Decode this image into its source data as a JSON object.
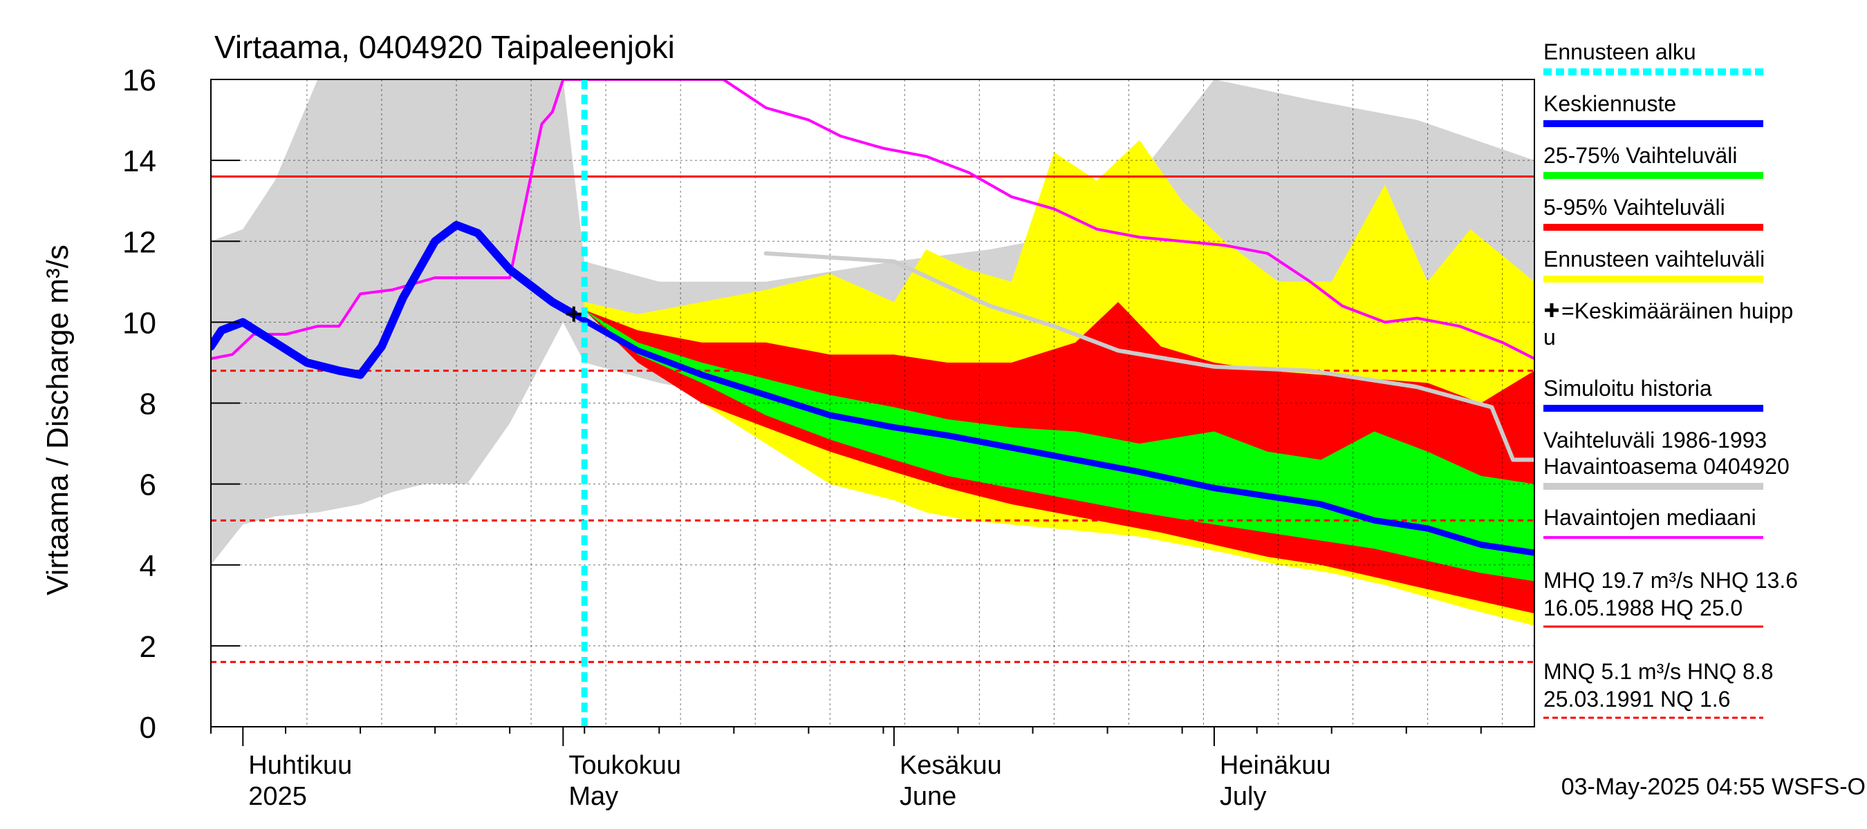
{
  "chart_data": {
    "type": "area",
    "title": "Virtaama, 0404920 Taipaleenjoki",
    "ylabel": "Virtaama / Discharge    m³/s",
    "ylim": [
      0,
      16
    ],
    "yticks": [
      0,
      2,
      4,
      6,
      8,
      10,
      12,
      14,
      16
    ],
    "xlim": [
      "2025-03-29",
      "2025-07-31"
    ],
    "month_labels": [
      {
        "fi": "Huhtikuu",
        "en": "2025",
        "date": "2025-04-01"
      },
      {
        "fi": "Toukokuu",
        "en": "May",
        "date": "2025-05-01"
      },
      {
        "fi": "Kesäkuu",
        "en": "June",
        "date": "2025-06-01"
      },
      {
        "fi": "Heinäkuu",
        "en": "July",
        "date": "2025-07-01"
      }
    ],
    "forecast_start": "2025-05-03",
    "mean_peak": {
      "date": "2025-05-02",
      "value": 10.2
    },
    "reference_lines": {
      "NHQ": 13.6,
      "HNQ": 8.8,
      "MNQ": 5.1,
      "NQ": 1.6
    },
    "series": [
      {
        "name": "Vaihteluväli 1986-1993 Havaintoasema 0404920",
        "kind": "band",
        "x": [
          "2025-03-29",
          "2025-04-01",
          "2025-04-04",
          "2025-04-08",
          "2025-04-12",
          "2025-04-15",
          "2025-04-18",
          "2025-04-22",
          "2025-04-26",
          "2025-04-28",
          "2025-05-01",
          "2025-05-03",
          "2025-05-10",
          "2025-05-20",
          "2025-06-01",
          "2025-06-10",
          "2025-06-20",
          "2025-07-01",
          "2025-07-10",
          "2025-07-20",
          "2025-07-31"
        ],
        "upper": [
          12.0,
          12.3,
          13.5,
          16.0,
          16.0,
          16.0,
          16.0,
          16.0,
          16.0,
          16.0,
          16.0,
          11.5,
          11.0,
          11.0,
          11.5,
          11.8,
          12.3,
          16.0,
          15.5,
          15.0,
          14.0
        ],
        "lower": [
          4.0,
          5.0,
          5.2,
          5.3,
          5.5,
          5.8,
          6.0,
          6.0,
          7.5,
          8.5,
          10.0,
          9.0,
          8.5,
          8.0,
          7.8,
          7.5,
          7.5,
          7.4,
          7.3,
          7.2,
          6.6
        ]
      },
      {
        "name": "Ennusteen vaihteluväli",
        "kind": "band",
        "x": [
          "2025-05-03",
          "2025-05-08",
          "2025-05-14",
          "2025-05-20",
          "2025-05-26",
          "2025-06-01",
          "2025-06-04",
          "2025-06-08",
          "2025-06-12",
          "2025-06-16",
          "2025-06-20",
          "2025-06-24",
          "2025-06-28",
          "2025-07-02",
          "2025-07-07",
          "2025-07-12",
          "2025-07-17",
          "2025-07-21",
          "2025-07-25",
          "2025-07-31"
        ],
        "upper": [
          10.5,
          10.2,
          10.5,
          10.8,
          11.2,
          10.5,
          11.8,
          11.3,
          11.0,
          14.2,
          13.5,
          14.5,
          13.0,
          12.0,
          11.0,
          11.0,
          13.4,
          11.0,
          12.3,
          11.0
        ],
        "lower": [
          10.3,
          9.2,
          8.0,
          7.0,
          6.0,
          5.6,
          5.3,
          5.1,
          5.0,
          4.9,
          4.8,
          4.7,
          4.5,
          4.3,
          4.0,
          3.8,
          3.5,
          3.2,
          2.9,
          2.5
        ]
      },
      {
        "name": "5-95% Vaihteluväli",
        "kind": "band",
        "x": [
          "2025-05-03",
          "2025-05-08",
          "2025-05-14",
          "2025-05-20",
          "2025-05-26",
          "2025-06-01",
          "2025-06-06",
          "2025-06-12",
          "2025-06-18",
          "2025-06-22",
          "2025-06-26",
          "2025-07-01",
          "2025-07-06",
          "2025-07-11",
          "2025-07-16",
          "2025-07-21",
          "2025-07-26",
          "2025-07-31"
        ],
        "upper": [
          10.3,
          9.8,
          9.5,
          9.5,
          9.2,
          9.2,
          9.0,
          9.0,
          9.5,
          10.5,
          9.4,
          9.0,
          8.8,
          8.7,
          8.6,
          8.5,
          8.0,
          8.8
        ],
        "lower": [
          10.3,
          9.0,
          8.0,
          7.4,
          6.8,
          6.3,
          5.9,
          5.5,
          5.2,
          5.0,
          4.8,
          4.5,
          4.2,
          4.0,
          3.7,
          3.4,
          3.1,
          2.8
        ]
      },
      {
        "name": "25-75% Vaihteluväli",
        "kind": "band",
        "x": [
          "2025-05-03",
          "2025-05-08",
          "2025-05-14",
          "2025-05-20",
          "2025-05-26",
          "2025-06-01",
          "2025-06-06",
          "2025-06-12",
          "2025-06-18",
          "2025-06-24",
          "2025-07-01",
          "2025-07-06",
          "2025-07-11",
          "2025-07-16",
          "2025-07-21",
          "2025-07-26",
          "2025-07-31"
        ],
        "upper": [
          10.3,
          9.5,
          9.0,
          8.6,
          8.2,
          7.9,
          7.6,
          7.4,
          7.3,
          7.0,
          7.3,
          6.8,
          6.6,
          7.3,
          6.8,
          6.2,
          6.0
        ],
        "lower": [
          10.3,
          9.2,
          8.5,
          7.7,
          7.1,
          6.6,
          6.2,
          5.9,
          5.6,
          5.3,
          5.0,
          4.8,
          4.6,
          4.4,
          4.1,
          3.8,
          3.6
        ]
      },
      {
        "name": "Havaintojen mediaani",
        "kind": "line",
        "x": [
          "2025-03-29",
          "2025-03-31",
          "2025-04-02",
          "2025-04-05",
          "2025-04-08",
          "2025-04-10",
          "2025-04-12",
          "2025-04-15",
          "2025-04-19",
          "2025-04-22",
          "2025-04-24",
          "2025-04-26",
          "2025-04-29",
          "2025-04-30",
          "2025-05-01",
          "2025-05-16",
          "2025-05-20",
          "2025-05-24",
          "2025-05-27",
          "2025-05-31",
          "2025-06-04",
          "2025-06-08",
          "2025-06-12",
          "2025-06-16",
          "2025-06-20",
          "2025-06-24",
          "2025-06-28",
          "2025-07-02",
          "2025-07-06",
          "2025-07-10",
          "2025-07-13",
          "2025-07-17",
          "2025-07-20",
          "2025-07-24",
          "2025-07-28",
          "2025-07-31"
        ],
        "y": [
          9.1,
          9.2,
          9.7,
          9.7,
          9.9,
          9.9,
          10.7,
          10.8,
          11.1,
          11.1,
          11.1,
          11.1,
          14.9,
          15.2,
          16.0,
          16.0,
          15.3,
          15.0,
          14.6,
          14.3,
          14.1,
          13.7,
          13.1,
          12.8,
          12.3,
          12.1,
          12.0,
          11.9,
          11.7,
          11.0,
          10.4,
          10.0,
          10.1,
          9.9,
          9.5,
          9.1
        ]
      },
      {
        "name": "Havaintoasema mediaani (harmaa)",
        "kind": "line",
        "x": [
          "2025-05-20",
          "2025-06-01",
          "2025-06-10",
          "2025-06-16",
          "2025-06-22",
          "2025-07-01",
          "2025-07-10",
          "2025-07-20",
          "2025-07-27",
          "2025-07-29",
          "2025-07-31"
        ],
        "y": [
          11.7,
          11.5,
          10.4,
          9.9,
          9.3,
          8.9,
          8.8,
          8.4,
          7.9,
          6.6,
          6.6
        ]
      },
      {
        "name": "Simuloitu historia",
        "kind": "line",
        "x": [
          "2025-03-29",
          "2025-03-30",
          "2025-04-01",
          "2025-04-04",
          "2025-04-07",
          "2025-04-10",
          "2025-04-12",
          "2025-04-14",
          "2025-04-16",
          "2025-04-19",
          "2025-04-21",
          "2025-04-23",
          "2025-04-26",
          "2025-04-28",
          "2025-04-30",
          "2025-05-02"
        ],
        "y": [
          9.4,
          9.8,
          10.0,
          9.5,
          9.0,
          8.8,
          8.7,
          9.4,
          10.6,
          12.0,
          12.4,
          12.2,
          11.3,
          10.9,
          10.5,
          10.2
        ]
      },
      {
        "name": "Keskiennuste",
        "kind": "line",
        "x": [
          "2025-05-02",
          "2025-05-08",
          "2025-05-14",
          "2025-05-20",
          "2025-05-26",
          "2025-06-01",
          "2025-06-06",
          "2025-06-12",
          "2025-06-18",
          "2025-06-24",
          "2025-07-01",
          "2025-07-06",
          "2025-07-11",
          "2025-07-16",
          "2025-07-21",
          "2025-07-26",
          "2025-07-31"
        ],
        "y": [
          10.2,
          9.3,
          8.7,
          8.2,
          7.7,
          7.4,
          7.2,
          6.9,
          6.6,
          6.3,
          5.9,
          5.7,
          5.5,
          5.1,
          4.9,
          4.5,
          4.3
        ]
      }
    ],
    "legend": [
      {
        "label": "Ennusteen alku",
        "color": "#00ffff",
        "style": "dashed"
      },
      {
        "label": "Keskiennuste",
        "color": "#0000ff",
        "style": "line"
      },
      {
        "label": "25-75% Vaihteluväli",
        "color": "#00ff00",
        "style": "line"
      },
      {
        "label": "5-95% Vaihteluväli",
        "color": "#ff0000",
        "style": "line"
      },
      {
        "label": "Ennusteen vaihteluväli",
        "color": "#ffff00",
        "style": "line"
      },
      {
        "label": "=Keskimääräinen huipp",
        "label2": "u",
        "color": "#000000",
        "style": "plus"
      },
      {
        "label": "Simuloitu historia",
        "color": "#0000ff",
        "style": "line"
      },
      {
        "label": "Vaihteluväli 1986-1993",
        "label2": " Havaintoasema 0404920",
        "color": "#cccccc",
        "style": "line"
      },
      {
        "label": "Havaintojen mediaani",
        "color": "#ff00ff",
        "style": "thin"
      }
    ],
    "stats": [
      {
        "line1": "MHQ 19.7 m³/s NHQ 13.6",
        "line2": "16.05.1988 HQ 25.0",
        "color": "#ff0000",
        "style": "solid"
      },
      {
        "line1": "MNQ  5.1 m³/s HNQ  8.8",
        "line2": "25.03.1991 NQ  1.6",
        "color": "#ff0000",
        "style": "dashed"
      }
    ],
    "timestamp": "03-May-2025 04:55 WSFS-O"
  }
}
